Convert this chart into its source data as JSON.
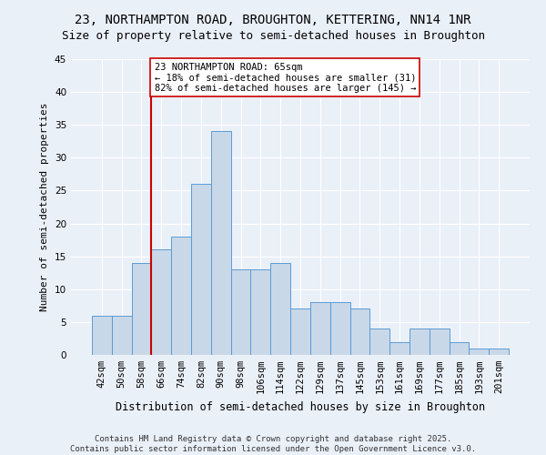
{
  "title": "23, NORTHAMPTON ROAD, BROUGHTON, KETTERING, NN14 1NR",
  "subtitle": "Size of property relative to semi-detached houses in Broughton",
  "xlabel": "Distribution of semi-detached houses by size in Broughton",
  "ylabel": "Number of semi-detached properties",
  "bar_labels": [
    "42sqm",
    "50sqm",
    "58sqm",
    "66sqm",
    "74sqm",
    "82sqm",
    "90sqm",
    "98sqm",
    "106sqm",
    "114sqm",
    "122sqm",
    "129sqm",
    "137sqm",
    "145sqm",
    "153sqm",
    "161sqm",
    "169sqm",
    "177sqm",
    "185sqm",
    "193sqm",
    "201sqm"
  ],
  "bar_values": [
    6,
    6,
    14,
    16,
    18,
    26,
    34,
    13,
    13,
    14,
    7,
    8,
    8,
    7,
    4,
    2,
    4,
    4,
    2,
    1,
    1
  ],
  "bar_color": "#c8d8e8",
  "bar_edge_color": "#5b9bd5",
  "vline_color": "#cc0000",
  "vline_pos": 2.5,
  "annotation_text": "23 NORTHAMPTON ROAD: 65sqm\n← 18% of semi-detached houses are smaller (31)\n82% of semi-detached houses are larger (145) →",
  "annotation_box_color": "#ffffff",
  "annotation_box_edge": "#cc0000",
  "ylim": [
    0,
    45
  ],
  "yticks": [
    0,
    5,
    10,
    15,
    20,
    25,
    30,
    35,
    40,
    45
  ],
  "bg_color": "#eaf0f8",
  "plot_bg_color": "#eaf0f8",
  "footer": "Contains HM Land Registry data © Crown copyright and database right 2025.\nContains public sector information licensed under the Open Government Licence v3.0.",
  "title_fontsize": 10,
  "subtitle_fontsize": 9,
  "xlabel_fontsize": 8.5,
  "ylabel_fontsize": 8,
  "tick_fontsize": 7.5,
  "annotation_fontsize": 7.5,
  "footer_fontsize": 6.5
}
